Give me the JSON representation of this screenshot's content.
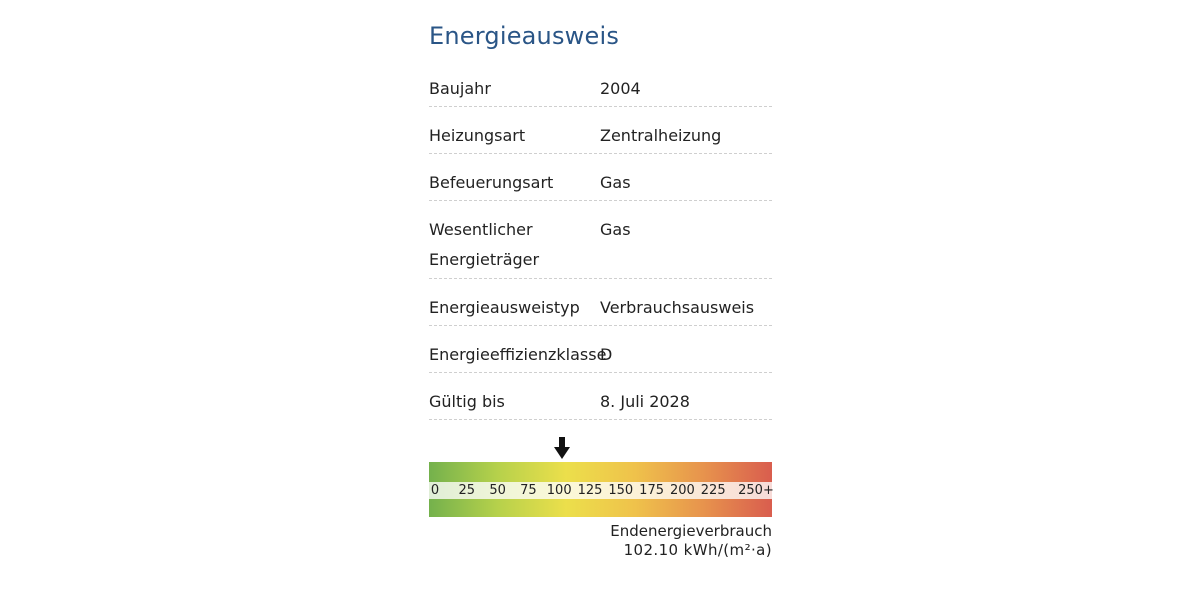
{
  "title": "Energieausweis",
  "rows": [
    {
      "label": "Baujahr",
      "value": "2004"
    },
    {
      "label": "Heizungsart",
      "value": "Zentralheizung"
    },
    {
      "label": "Befeuerungsart",
      "value": "Gas"
    },
    {
      "label": "Wesentlicher Energieträger",
      "value": "Gas"
    },
    {
      "label": "Energieausweistyp",
      "value": "Verbrauchsausweis"
    },
    {
      "label": "Energieeffizienzklasse",
      "value": "D"
    },
    {
      "label": "Gültig bis",
      "value": "8. Juli 2028"
    }
  ],
  "scale": {
    "ticks": [
      "0",
      "25",
      "50",
      "75",
      "100",
      "125",
      "150",
      "175",
      "200",
      "225",
      "250+"
    ],
    "tick_values": [
      0,
      25,
      50,
      75,
      100,
      125,
      150,
      175,
      200,
      225,
      250
    ],
    "min": 0,
    "max": 250,
    "marker_value": 102.1,
    "colors": [
      "#74b14c",
      "#b6d14b",
      "#ecdf4b",
      "#efc24b",
      "#e7934d",
      "#d95d4e"
    ]
  },
  "caption": {
    "label": "Endenergieverbrauch",
    "value": "102.10 kWh/(m²·a)"
  }
}
